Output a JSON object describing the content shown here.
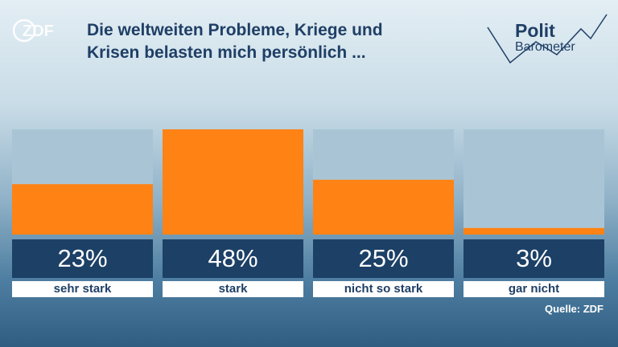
{
  "brand": {
    "logo_icon": "zdf-logo-icon",
    "politbarometer_line1": "Polit",
    "politbarometer_line2": "Barometer"
  },
  "chart_data": {
    "type": "bar",
    "title": "Die weltweiten Probleme, Kriege und Krisen belasten mich persönlich ...",
    "title_lines": [
      "Die weltweiten Probleme, Kriege und",
      "Krisen belasten mich persönlich ..."
    ],
    "categories": [
      "sehr stark",
      "stark",
      "nicht so stark",
      "gar nicht"
    ],
    "values": [
      23,
      48,
      25,
      3
    ],
    "value_labels": [
      "23%",
      "48%",
      "25%",
      "3%"
    ],
    "ylim": [
      0,
      48
    ],
    "bar_color": "#ff8214",
    "track_color": "#a9c5d5",
    "label_box_color": "#1c4066",
    "grid": false
  },
  "source": "Quelle: ZDF"
}
